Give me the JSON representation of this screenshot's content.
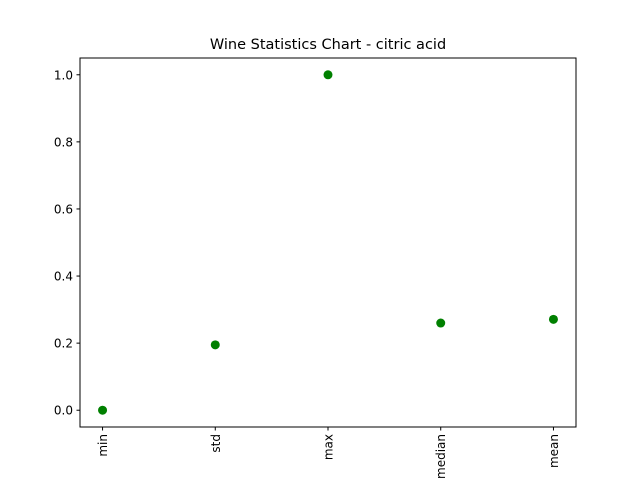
{
  "chart_data": {
    "type": "scatter",
    "title": "Wine Statistics Chart - citric acid",
    "xlabel": "",
    "ylabel": "",
    "categories": [
      "min",
      "std",
      "max",
      "median",
      "mean"
    ],
    "values": [
      0.0,
      0.195,
      1.0,
      0.26,
      0.271
    ],
    "ylim": [
      -0.05,
      1.05
    ],
    "yticks": [
      0.0,
      0.2,
      0.4,
      0.6,
      0.8,
      1.0
    ],
    "ytick_labels": [
      "0.0",
      "0.2",
      "0.4",
      "0.6",
      "0.8",
      "1.0"
    ],
    "grid": false,
    "legend": "none",
    "marker_color": "#008000"
  }
}
